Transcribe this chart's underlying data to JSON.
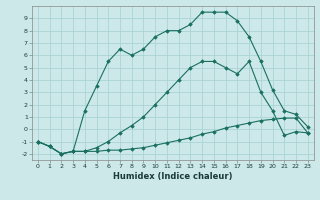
{
  "xlabel": "Humidex (Indice chaleur)",
  "background_color": "#cce8e8",
  "grid_color": "#aad4d4",
  "line_color": "#1a7060",
  "xlim": [
    -0.5,
    23.5
  ],
  "ylim": [
    -2.5,
    10.0
  ],
  "xticks": [
    0,
    1,
    2,
    3,
    4,
    5,
    6,
    7,
    8,
    9,
    10,
    11,
    12,
    13,
    14,
    15,
    16,
    17,
    18,
    19,
    20,
    21,
    22,
    23
  ],
  "yticks": [
    -2,
    -1,
    0,
    1,
    2,
    3,
    4,
    5,
    6,
    7,
    8,
    9
  ],
  "line1_x": [
    0,
    1,
    2,
    3,
    4,
    5,
    6,
    7,
    8,
    9,
    10,
    11,
    12,
    13,
    14,
    15,
    16,
    17,
    18,
    19,
    20,
    21,
    22,
    23
  ],
  "line1_y": [
    -1.0,
    -1.4,
    -2.0,
    -1.8,
    -1.8,
    -1.8,
    -1.7,
    -1.7,
    -1.6,
    -1.5,
    -1.3,
    -1.1,
    -0.9,
    -0.7,
    -0.4,
    -0.2,
    0.1,
    0.3,
    0.5,
    0.7,
    0.8,
    0.9,
    0.9,
    -0.3
  ],
  "line2_x": [
    0,
    1,
    2,
    3,
    4,
    5,
    6,
    7,
    8,
    9,
    10,
    11,
    12,
    13,
    14,
    15,
    16,
    17,
    18,
    19,
    20,
    21,
    22,
    23
  ],
  "line2_y": [
    -1.0,
    -1.4,
    -2.0,
    -1.8,
    -1.8,
    -1.5,
    -1.0,
    -0.3,
    0.3,
    1.0,
    2.0,
    3.0,
    4.0,
    5.0,
    5.5,
    5.5,
    5.0,
    4.5,
    5.5,
    3.0,
    1.5,
    -0.5,
    -0.2,
    -0.3
  ],
  "line3_x": [
    0,
    1,
    2,
    3,
    4,
    5,
    6,
    7,
    8,
    9,
    10,
    11,
    12,
    13,
    14,
    15,
    16,
    17,
    18,
    19,
    20,
    21,
    22,
    23
  ],
  "line3_y": [
    -1.0,
    -1.4,
    -2.0,
    -1.8,
    1.5,
    3.5,
    5.5,
    6.5,
    6.0,
    6.5,
    7.5,
    8.0,
    8.0,
    8.5,
    9.5,
    9.5,
    9.5,
    8.8,
    7.5,
    5.5,
    3.2,
    1.5,
    1.2,
    0.2
  ]
}
